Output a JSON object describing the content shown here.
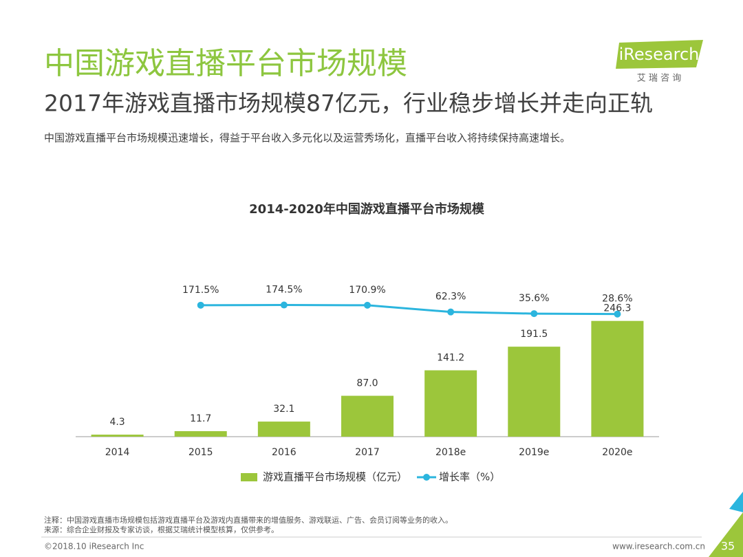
{
  "header": {
    "title": "中国游戏直播平台市场规模",
    "subtitle": "2017年游戏直播市场规模87亿元，行业稳步增长并走向正轨",
    "description": "中国游戏直播平台市场规模迅速增长，得益于平台收入多元化以及运营秀场化，直播平台收入将持续保持高速增长。",
    "logo": "iResearch",
    "logo_sub": "艾 瑞 咨 询"
  },
  "chart_data": {
    "type": "bar_line",
    "title": "2014-2020年中国游戏直播平台市场规模",
    "categories": [
      "2014",
      "2015",
      "2016",
      "2017",
      "2018e",
      "2019e",
      "2020e"
    ],
    "series": [
      {
        "name": "游戏直播平台市场规模（亿元）",
        "type": "bar",
        "color": "#9cc63b",
        "values": [
          4.3,
          11.7,
          32.1,
          87.0,
          141.2,
          191.5,
          246.3
        ],
        "value_labels": [
          "4.3",
          "11.7",
          "32.1",
          "87.0",
          "141.2",
          "191.5",
          "246.3"
        ]
      },
      {
        "name": "增长率（%）",
        "type": "line",
        "axis": "y2",
        "color": "#2bb5de",
        "values": [
          null,
          171.5,
          174.5,
          170.9,
          62.3,
          35.6,
          28.6
        ],
        "value_labels": [
          null,
          "171.5%",
          "174.5%",
          "170.9%",
          "62.3%",
          "35.6%",
          "28.6%"
        ]
      }
    ],
    "ylim": [
      0,
      300
    ],
    "y2lim": [
      -1950,
      325
    ]
  },
  "footer": {
    "note": "注释：中国游戏直播市场规模包括游戏直播平台及游戏内直播带来的增值服务、游戏联运、广告、会员订阅等业务的收入。",
    "source": "来源：综合企业财报及专家访谈，根据艾瑞统计模型核算，仅供参考。",
    "copyright": "©2018.10 iResearch Inc",
    "website": "www.iresearch.com.cn",
    "page": "35"
  }
}
